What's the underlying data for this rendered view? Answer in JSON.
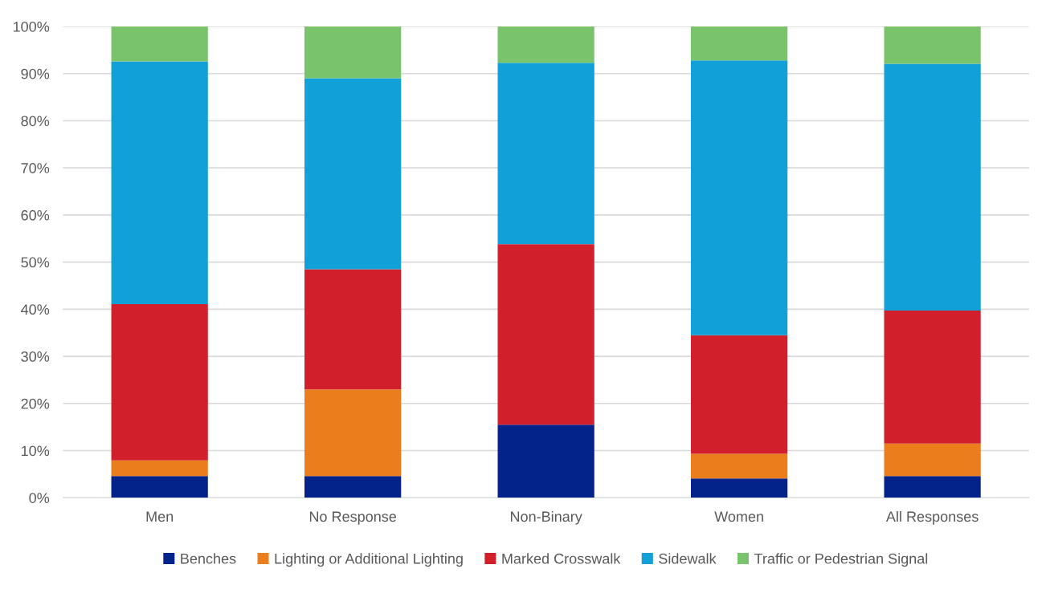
{
  "chart_data": {
    "type": "bar",
    "stacked": true,
    "categories": [
      "Men",
      "No Response",
      "Non-Binary",
      "Women",
      "All Responses"
    ],
    "series": [
      {
        "name": "Benches",
        "color": "#03238b",
        "values": [
          4.6,
          4.6,
          15.5,
          4.1,
          4.6
        ]
      },
      {
        "name": "Lighting or Additional Lighting",
        "color": "#ec7d1c",
        "values": [
          3.3,
          18.4,
          0,
          5.2,
          6.9
        ]
      },
      {
        "name": "Marked Crosswalk",
        "color": "#d21f2c",
        "values": [
          33.2,
          25.5,
          38.3,
          25.2,
          28.2
        ]
      },
      {
        "name": "Sidewalk",
        "color": "#11a0d7",
        "values": [
          51.5,
          40.5,
          38.5,
          58.3,
          52.4
        ]
      },
      {
        "name": "Traffic or Pedestrian Signal",
        "color": "#79c46b",
        "values": [
          7.4,
          11.0,
          7.7,
          7.2,
          7.9
        ]
      }
    ],
    "ylim": [
      0,
      100
    ],
    "yticks": [
      {
        "value": 0,
        "label": "0%"
      },
      {
        "value": 10,
        "label": "10%"
      },
      {
        "value": 20,
        "label": "20%"
      },
      {
        "value": 30,
        "label": "30%"
      },
      {
        "value": 40,
        "label": "40%"
      },
      {
        "value": 50,
        "label": "50%"
      },
      {
        "value": 60,
        "label": "60%"
      },
      {
        "value": 70,
        "label": "70%"
      },
      {
        "value": 80,
        "label": "80%"
      },
      {
        "value": 90,
        "label": "90%"
      },
      {
        "value": 100,
        "label": "100%"
      }
    ],
    "grid": "y",
    "legend": "bottom"
  }
}
